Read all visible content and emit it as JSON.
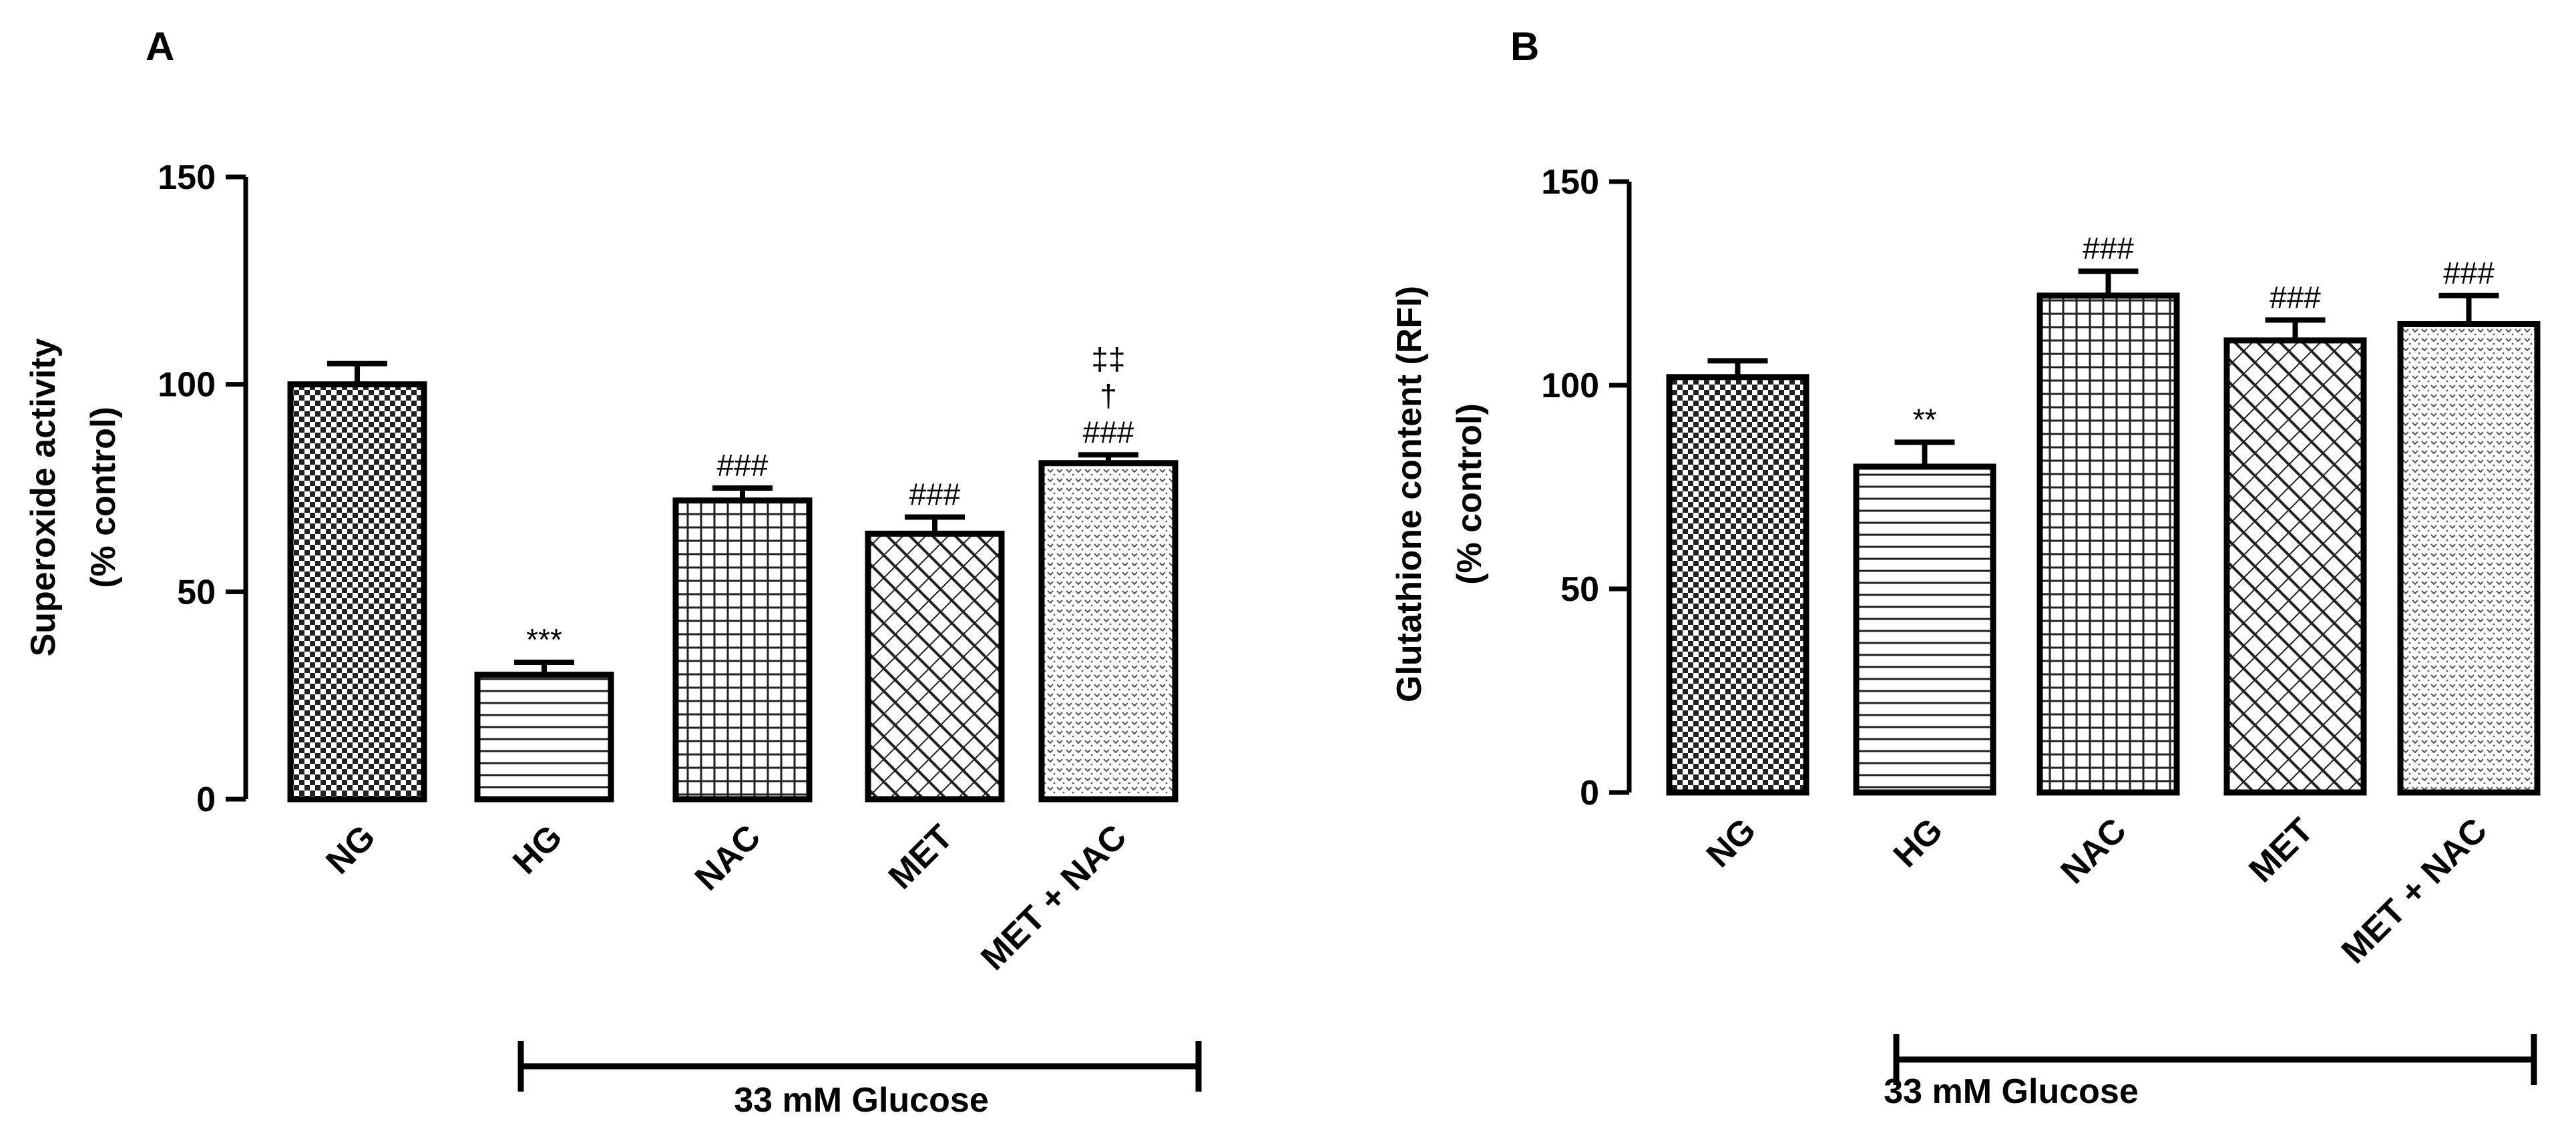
{
  "chart_data": [
    {
      "type": "bar",
      "panel": "A",
      "title": "",
      "xlabel": "",
      "ylabel": "Superoxide activity",
      "ylabel2": "(% control)",
      "ylim": [
        0,
        150
      ],
      "yticks": [
        0,
        50,
        100,
        150
      ],
      "categories": [
        "NG",
        "HG",
        "NAC",
        "MET",
        "MET + NAC"
      ],
      "values": [
        100,
        30,
        72,
        64,
        81
      ],
      "errors": [
        5,
        3,
        3,
        4,
        2
      ],
      "patterns": [
        "checker",
        "hlines",
        "grid",
        "diaggrid",
        "dots"
      ],
      "annotations": [
        [],
        [
          "***"
        ],
        [
          "###"
        ],
        [
          "###"
        ],
        [
          "###",
          "†",
          "‡‡"
        ]
      ],
      "group": {
        "label": "33 mM Glucose",
        "from": 1,
        "to": 4
      }
    },
    {
      "type": "bar",
      "panel": "B",
      "title": "",
      "xlabel": "",
      "ylabel": "Glutathione content (RFI)",
      "ylabel2": "(% control)",
      "ylim": [
        0,
        150
      ],
      "yticks": [
        0,
        50,
        100,
        150
      ],
      "categories": [
        "NG",
        "HG",
        "NAC",
        "MET",
        "MET + NAC"
      ],
      "values": [
        102,
        80,
        122,
        111,
        115
      ],
      "errors": [
        4,
        6,
        6,
        5,
        7
      ],
      "patterns": [
        "checker",
        "hlines",
        "grid",
        "diaggrid",
        "dots"
      ],
      "annotations": [
        [],
        [
          "**"
        ],
        [
          "###"
        ],
        [
          "###"
        ],
        [
          "###"
        ]
      ],
      "group": {
        "label": "33 mM Glucose",
        "from": 1,
        "to": 4
      }
    }
  ]
}
